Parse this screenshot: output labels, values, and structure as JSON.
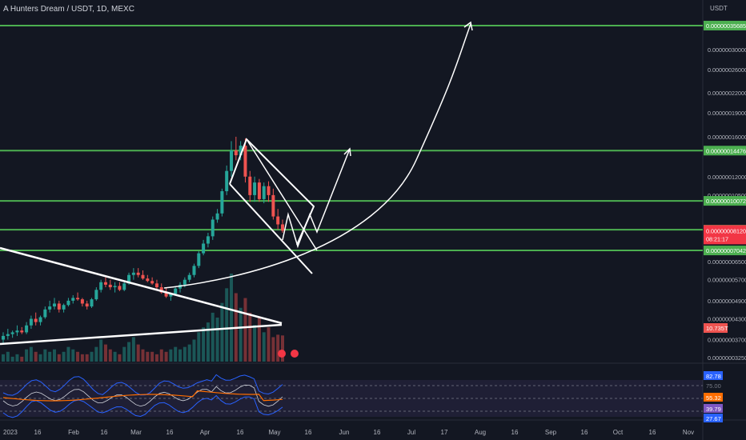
{
  "header": {
    "title": "A Hunters Dream / USDT, 1D, MEXC"
  },
  "colors": {
    "background": "#131722",
    "up": "#26a69a",
    "down": "#ef5350",
    "level_line": "#4caf50",
    "level_tag_bg": "#4caf50",
    "price_tag_bg": "#f23645",
    "rsi_line": "#e040fb",
    "bb_band": "#2962ff",
    "rsi_ma": "#ff6d00",
    "drawing": "#ffffff"
  },
  "chart_data": {
    "type": "candlestick",
    "symbol": "A Hunters Dream / USDT",
    "interval": "1D",
    "exchange": "MEXC",
    "price_axis": {
      "unit_label": "USDT",
      "tick_labels": [
        "0.000000300000",
        "0.000000260000",
        "0.000000220000",
        "0.000000190000",
        "0.000000160000",
        "0.000000120000",
        "0.000000105000",
        "0.000000065000",
        "0.000000057000",
        "0.000000049000",
        "0.000000043000",
        "0.000000037000",
        "0.000000032500"
      ],
      "scale": "log"
    },
    "time_axis": {
      "tick_labels": [
        "2023",
        "16",
        "Feb",
        "16",
        "Mar",
        "16",
        "Apr",
        "16",
        "May",
        "16",
        "Jun",
        "16",
        "Jul",
        "17",
        "Aug",
        "16",
        "Sep",
        "16",
        "Oct",
        "16",
        "Nov"
      ]
    },
    "horizontal_levels": [
      "0.000000356850",
      "0.000000144761",
      "0.000000100729",
      "0.000000081819",
      "0.000000070429"
    ],
    "current_price": {
      "value": "0.000000081206",
      "countdown": "08:21:17"
    },
    "volume_label": "10.735T",
    "ohlc_approx": [
      [
        3.7e-08,
        3.9e-08,
        3.6e-08,
        3.8e-08
      ],
      [
        3.8e-08,
        4e-08,
        3.7e-08,
        3.85e-08
      ],
      [
        3.85e-08,
        3.95e-08,
        3.75e-08,
        3.9e-08
      ],
      [
        3.9e-08,
        4.1e-08,
        3.8e-08,
        3.95e-08
      ],
      [
        3.95e-08,
        4.05e-08,
        3.85e-08,
        3.9e-08
      ],
      [
        3.9e-08,
        4.2e-08,
        3.85e-08,
        4.1e-08
      ],
      [
        4.1e-08,
        4.4e-08,
        4e-08,
        4.3e-08
      ],
      [
        4.3e-08,
        4.5e-08,
        4.1e-08,
        4.2e-08
      ],
      [
        4.2e-08,
        4.4e-08,
        4.1e-08,
        4.35e-08
      ],
      [
        4.35e-08,
        4.7e-08,
        4.3e-08,
        4.6e-08
      ],
      [
        4.6e-08,
        4.9e-08,
        4.5e-08,
        4.7e-08
      ],
      [
        4.7e-08,
        5e-08,
        4.6e-08,
        4.8e-08
      ],
      [
        4.8e-08,
        4.9e-08,
        4.5e-08,
        4.6e-08
      ],
      [
        4.6e-08,
        4.8e-08,
        4.5e-08,
        4.75e-08
      ],
      [
        4.75e-08,
        5e-08,
        4.7e-08,
        4.9e-08
      ],
      [
        4.9e-08,
        5.1e-08,
        4.8e-08,
        5e-08
      ],
      [
        5e-08,
        5.2e-08,
        4.9e-08,
        4.95e-08
      ],
      [
        4.95e-08,
        5e-08,
        4.7e-08,
        4.8e-08
      ],
      [
        4.8e-08,
        4.9e-08,
        4.6e-08,
        4.7e-08
      ],
      [
        4.7e-08,
        5e-08,
        4.65e-08,
        4.95e-08
      ],
      [
        4.95e-08,
        5.4e-08,
        4.9e-08,
        5.3e-08
      ],
      [
        5.3e-08,
        5.7e-08,
        5.2e-08,
        5.6e-08
      ],
      [
        5.6e-08,
        5.8e-08,
        5.4e-08,
        5.5e-08
      ],
      [
        5.5e-08,
        5.7e-08,
        5.3e-08,
        5.4e-08
      ],
      [
        5.4e-08,
        5.6e-08,
        5.2e-08,
        5.45e-08
      ],
      [
        5.45e-08,
        5.6e-08,
        5.25e-08,
        5.3e-08
      ],
      [
        5.3e-08,
        5.6e-08,
        5.25e-08,
        5.55e-08
      ],
      [
        5.55e-08,
        6e-08,
        5.5e-08,
        5.9e-08
      ],
      [
        5.9e-08,
        6.2e-08,
        5.7e-08,
        6e-08
      ],
      [
        6e-08,
        6.2e-08,
        5.8e-08,
        5.9e-08
      ],
      [
        5.9e-08,
        6.1e-08,
        5.7e-08,
        5.75e-08
      ],
      [
        5.75e-08,
        5.9e-08,
        5.6e-08,
        5.65e-08
      ],
      [
        5.65e-08,
        5.8e-08,
        5.5e-08,
        5.55e-08
      ],
      [
        5.55e-08,
        5.7e-08,
        5.3e-08,
        5.4e-08
      ],
      [
        5.4e-08,
        5.55e-08,
        5.15e-08,
        5.2e-08
      ],
      [
        5.2e-08,
        5.4e-08,
        5e-08,
        5.05e-08
      ],
      [
        5.05e-08,
        5.2e-08,
        4.9e-08,
        5.15e-08
      ],
      [
        5.15e-08,
        5.4e-08,
        5.1e-08,
        5.35e-08
      ],
      [
        5.35e-08,
        5.6e-08,
        5.2e-08,
        5.5e-08
      ],
      [
        5.5e-08,
        5.8e-08,
        5.4e-08,
        5.7e-08
      ],
      [
        5.7e-08,
        6e-08,
        5.6e-08,
        5.9e-08
      ],
      [
        5.9e-08,
        6.4e-08,
        5.8e-08,
        6.3e-08
      ],
      [
        6.3e-08,
        7e-08,
        6.2e-08,
        6.9e-08
      ],
      [
        6.9e-08,
        7.6e-08,
        6.8e-08,
        7.4e-08
      ],
      [
        7.4e-08,
        8e-08,
        7.2e-08,
        7.8e-08
      ],
      [
        7.8e-08,
        9e-08,
        7.6e-08,
        8.8e-08
      ],
      [
        8.8e-08,
        9.5e-08,
        8.6e-08,
        9.2e-08
      ],
      [
        9.2e-08,
        1.1e-07,
        9e-08,
        1.08e-07
      ],
      [
        1.08e-07,
        1.3e-07,
        1.05e-07,
        1.25e-07
      ],
      [
        1.25e-07,
        1.55e-07,
        1.2e-07,
        1.45e-07
      ],
      [
        1.45e-07,
        1.6e-07,
        1.35e-07,
        1.4e-07
      ],
      [
        1.4e-07,
        1.55e-07,
        1.35e-07,
        1.5e-07
      ],
      [
        1.5e-07,
        1.58e-07,
        1.15e-07,
        1.2e-07
      ],
      [
        1.2e-07,
        1.25e-07,
        1e-07,
        1.05e-07
      ],
      [
        1.05e-07,
        1.2e-07,
        1e-07,
        1.15e-07
      ],
      [
        1.15e-07,
        1.18e-07,
        1e-07,
        1.02e-07
      ],
      [
        1.02e-07,
        1.15e-07,
        9.9e-08,
        1.12e-07
      ],
      [
        1.12e-07,
        1.16e-07,
        1e-07,
        1.05e-07
      ],
      [
        1.05e-07,
        1.1e-07,
        8.8e-08,
        9e-08
      ],
      [
        9e-08,
        9.5e-08,
        8.2e-08,
        8.5e-08
      ],
      [
        8.5e-08,
        8.8e-08,
        8e-08,
        8.12e-08
      ]
    ],
    "volume_values_T": [
      3,
      4,
      2,
      3,
      2,
      5,
      6,
      4,
      3,
      5,
      4,
      5,
      3,
      4,
      6,
      5,
      4,
      3,
      3,
      4,
      6,
      9,
      7,
      5,
      4,
      3,
      6,
      8,
      10,
      7,
      5,
      4,
      4,
      3,
      5,
      4,
      5,
      6,
      5,
      6,
      7,
      9,
      12,
      14,
      16,
      20,
      18,
      24,
      30,
      36,
      28,
      22,
      26,
      20,
      15,
      18,
      12,
      14,
      10,
      11,
      10.7
    ],
    "indicator": {
      "name": "RSI",
      "axis_values": [
        "82.78",
        "75.00",
        "55.32",
        "39.79",
        "27.67"
      ]
    }
  }
}
